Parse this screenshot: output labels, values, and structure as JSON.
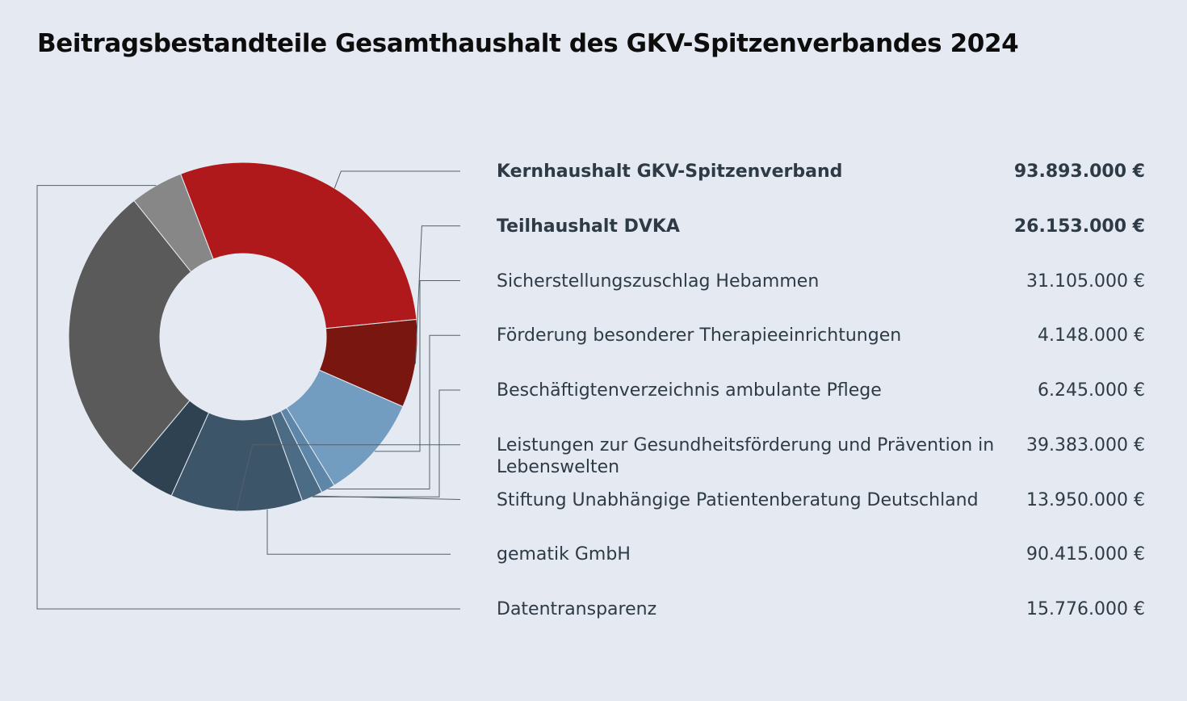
{
  "chart_data": {
    "type": "pie",
    "subtype": "donut",
    "title": "Beitragsbestandteile Gesamthaushalt des GKV-Spitzenverbandes 2024",
    "slices": [
      {
        "label": "Kernhaushalt GKV-Spitzenverband",
        "value": 93893000,
        "display": "93.893.000 €",
        "color": "#b0191b",
        "bold": true
      },
      {
        "label": "Teilhaushalt DVKA",
        "value": 26153000,
        "display": "26.153.000 €",
        "color": "#7a1610",
        "bold": true
      },
      {
        "label": "Sicherstellungszuschlag Hebammen",
        "value": 31105000,
        "display": "31.105.000 €",
        "color": "#729cc0",
        "bold": false
      },
      {
        "label": "Förderung besonderer Therapieeinrichtungen",
        "value": 4148000,
        "display": "4.148.000 €",
        "color": "#5d86a8",
        "bold": false
      },
      {
        "label": "Beschäftigtenverzeichnis ambulante Pflege",
        "value": 6245000,
        "display": "6.245.000 €",
        "color": "#4c6b84",
        "bold": false
      },
      {
        "label": "Leistungen zur Gesundheitsförderung und Prävention in Lebenswelten",
        "value": 39383000,
        "display": "39.383.000 €",
        "color": "#3d5569",
        "bold": false
      },
      {
        "label": "Stiftung Unabhängige Patientenberatung Deutschland",
        "value": 13950000,
        "display": "13.950.000 €",
        "color": "#2f4251",
        "bold": false
      },
      {
        "label": "gematik GmbH",
        "value": 90415000,
        "display": "90.415.000 €",
        "color": "#5a5a5a",
        "bold": false
      },
      {
        "label": "Datentransparenz",
        "value": 15776000,
        "display": "15.776.000 €",
        "color": "#878787",
        "bold": false
      }
    ],
    "legend": "right",
    "start_angle_deg": -21
  }
}
